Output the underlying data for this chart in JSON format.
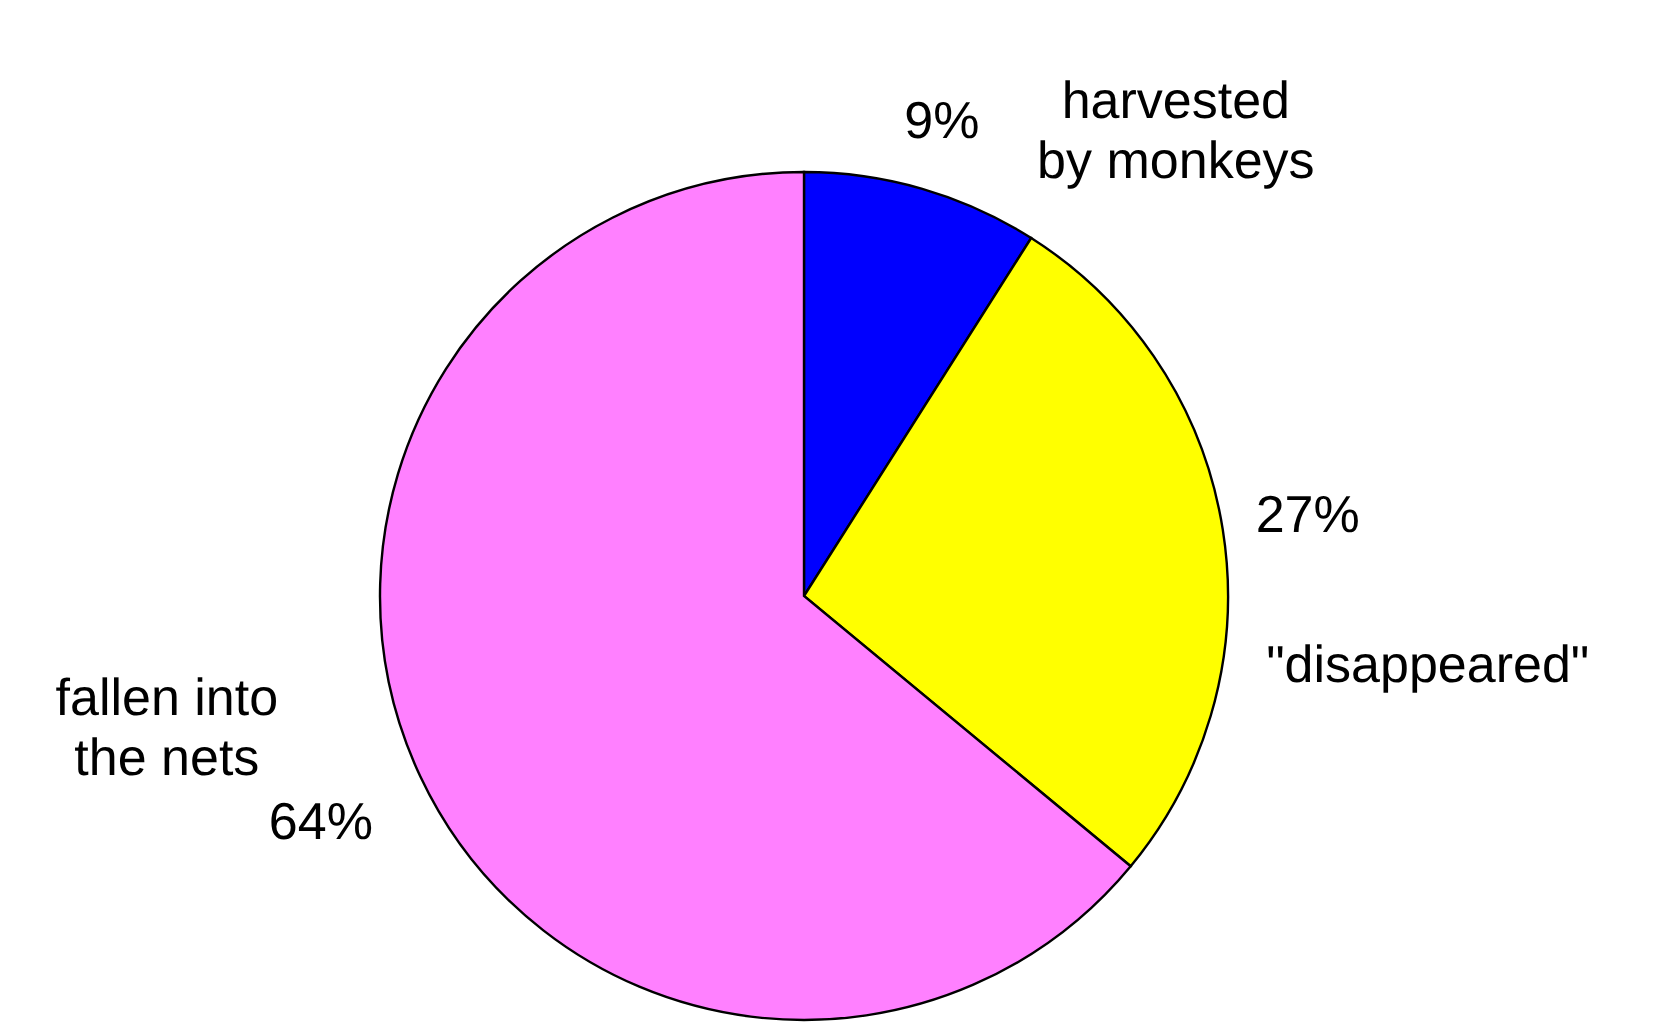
{
  "chart_data": {
    "type": "pie",
    "categories": [
      "harvested by monkeys",
      "\"disappeared\"",
      "fallen into the nets"
    ],
    "values": [
      9,
      27,
      64
    ],
    "colors": [
      "#0000ff",
      "#ffff00",
      "#ff80ff"
    ],
    "value_labels": [
      "9%",
      "27%",
      "64%"
    ]
  }
}
